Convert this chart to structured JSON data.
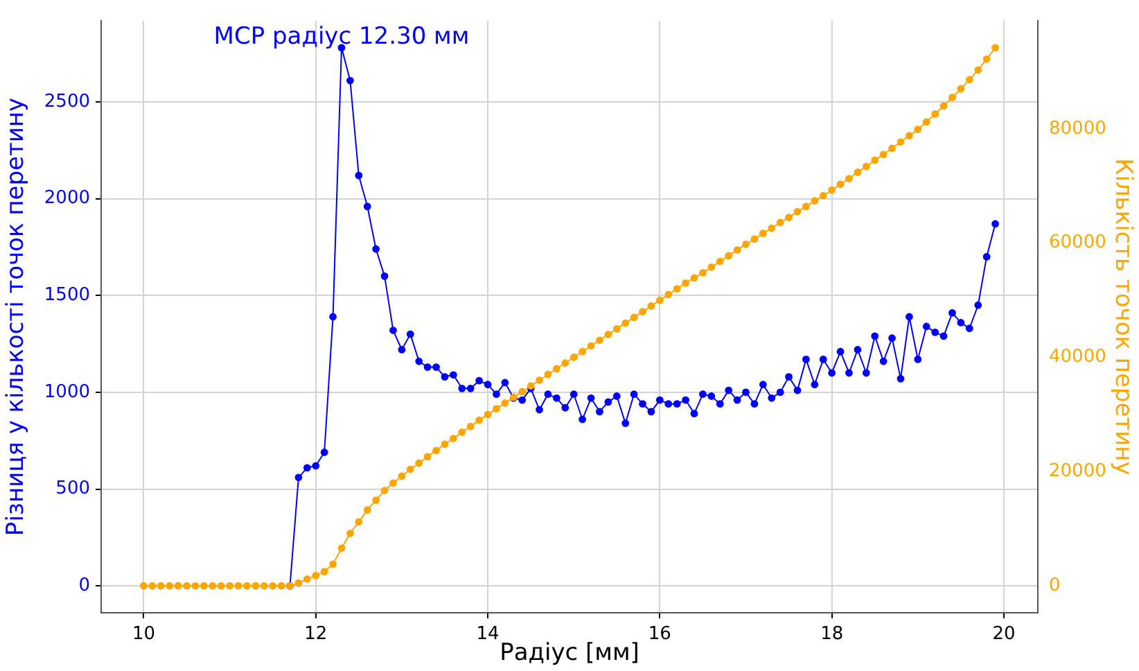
{
  "chart_data": {
    "type": "line",
    "xlabel": "Радіус [мм]",
    "ylabel": "Різниця у кількості точок перетину",
    "y2label": "Кількість точок перетину",
    "x": [
      10.0,
      10.1,
      10.2,
      10.3,
      10.4,
      10.5,
      10.6,
      10.7,
      10.8,
      10.9,
      11.0,
      11.1,
      11.2,
      11.3,
      11.4,
      11.5,
      11.6,
      11.7,
      11.8,
      11.9,
      12.0,
      12.1,
      12.2,
      12.3,
      12.4,
      12.5,
      12.6,
      12.7,
      12.8,
      12.9,
      13.0,
      13.1,
      13.2,
      13.3,
      13.4,
      13.5,
      13.6,
      13.7,
      13.8,
      13.9,
      14.0,
      14.1,
      14.2,
      14.3,
      14.4,
      14.5,
      14.6,
      14.7,
      14.8,
      14.9,
      15.0,
      15.1,
      15.2,
      15.3,
      15.4,
      15.5,
      15.6,
      15.7,
      15.8,
      15.9,
      16.0,
      16.1,
      16.2,
      16.3,
      16.4,
      16.5,
      16.6,
      16.7,
      16.8,
      16.9,
      17.0,
      17.1,
      17.2,
      17.3,
      17.4,
      17.5,
      17.6,
      17.7,
      17.8,
      17.9,
      18.0,
      18.1,
      18.2,
      18.3,
      18.4,
      18.5,
      18.6,
      18.7,
      18.8,
      18.9,
      19.0,
      19.1,
      19.2,
      19.3,
      19.4,
      19.5,
      19.6,
      19.7,
      19.8,
      19.9
    ],
    "series": [
      {
        "color": "#0000ff",
        "values": [
          null,
          null,
          null,
          null,
          null,
          null,
          null,
          null,
          null,
          null,
          null,
          null,
          null,
          null,
          null,
          null,
          null,
          0,
          560,
          610,
          620,
          690,
          1390,
          2780,
          2610,
          2120,
          1960,
          1740,
          1600,
          1320,
          1220,
          1300,
          1160,
          1130,
          1130,
          1080,
          1090,
          1020,
          1020,
          1060,
          1040,
          990,
          1050,
          970,
          960,
          1020,
          910,
          990,
          970,
          920,
          990,
          860,
          970,
          900,
          950,
          980,
          840,
          990,
          940,
          900,
          960,
          940,
          940,
          960,
          890,
          990,
          980,
          940,
          1010,
          960,
          1000,
          940,
          1040,
          970,
          1000,
          1080,
          1010,
          1170,
          1040,
          1170,
          1100,
          1210,
          1100,
          1220,
          1100,
          1290,
          1160,
          1280,
          1070,
          1390,
          1170,
          1340,
          1310,
          1290,
          1410,
          1360,
          1330,
          1450,
          1700,
          1870
        ]
      },
      {
        "color": "#ffa500",
        "axis": "y2",
        "values": [
          0,
          0,
          0,
          0,
          0,
          0,
          0,
          0,
          0,
          0,
          0,
          0,
          0,
          0,
          0,
          0,
          0,
          0,
          500,
          1200,
          1800,
          2500,
          3800,
          6600,
          9200,
          11200,
          13300,
          15000,
          16700,
          18000,
          19200,
          20400,
          21500,
          22600,
          23700,
          24800,
          25800,
          26900,
          27900,
          29000,
          30000,
          31000,
          32000,
          33000,
          34000,
          35000,
          36000,
          37000,
          38000,
          39000,
          40000,
          41000,
          42000,
          43000,
          44000,
          45000,
          46000,
          47000,
          48000,
          49000,
          50000,
          51000,
          52000,
          53000,
          53900,
          54800,
          55800,
          56800,
          57800,
          58800,
          59800,
          60700,
          61700,
          62600,
          63600,
          64500,
          65500,
          66400,
          67400,
          68300,
          69300,
          70300,
          71300,
          72400,
          73400,
          74500,
          75500,
          76600,
          77700,
          78800,
          79900,
          81200,
          82600,
          84000,
          85500,
          87000,
          88600,
          90300,
          92200,
          94200
        ]
      }
    ],
    "xlim": [
      9.505,
      20.395
    ],
    "xticks": [
      10,
      12,
      14,
      16,
      18,
      20
    ],
    "ylim": [
      -139,
      2919
    ],
    "yticks": [
      0,
      500,
      1000,
      1500,
      2000,
      2500
    ],
    "y2lim": [
      -4710,
      98910
    ],
    "y2ticks": [
      0,
      20000,
      40000,
      60000,
      80000
    ],
    "annotations": [
      {
        "text": "МСР радіус 12.30 мм",
        "x": 12.3,
        "y": 2780
      }
    ],
    "grid": true,
    "legend": false,
    "marker": "circle",
    "line_style": "solid"
  }
}
